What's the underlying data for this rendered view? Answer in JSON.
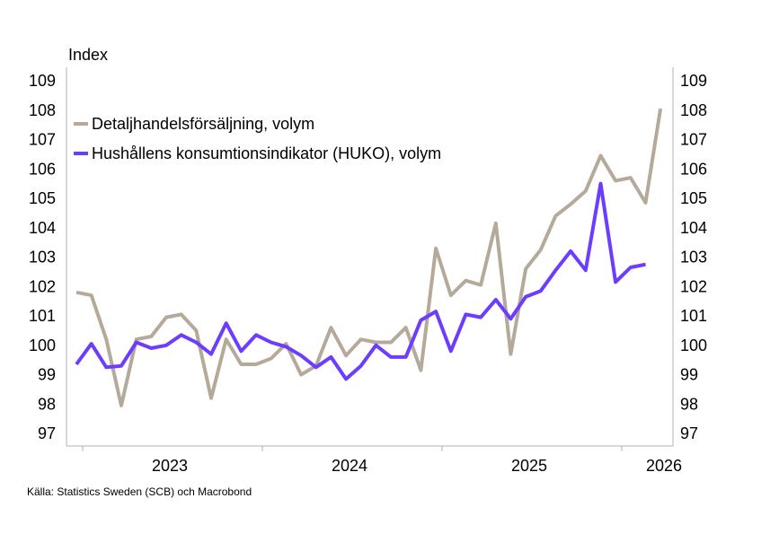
{
  "chart_data": {
    "type": "line",
    "ylabel": "Index",
    "ylim": [
      97,
      109
    ],
    "yticks": [
      97,
      98,
      99,
      100,
      101,
      102,
      103,
      104,
      105,
      106,
      107,
      108,
      109
    ],
    "x_tick_labels": [
      "2023",
      "2024",
      "2025",
      "2026"
    ],
    "x_start": "2022-09",
    "grid": false,
    "legend_position": "top-left",
    "series": [
      {
        "name": "Detaljhandelsförsäljning, volym",
        "color": "#b5aa9a",
        "values": [
          101.8,
          101.7,
          100.2,
          97.95,
          100.2,
          100.3,
          100.95,
          101.05,
          100.5,
          98.2,
          100.2,
          99.35,
          99.35,
          99.55,
          100.05,
          99.0,
          99.3,
          100.6,
          99.65,
          100.2,
          100.1,
          100.1,
          100.6,
          99.15,
          103.3,
          101.7,
          102.2,
          102.05,
          104.15,
          99.7,
          102.6,
          103.25,
          104.4,
          104.8,
          105.25,
          106.45,
          105.6,
          105.7,
          104.85,
          108.05
        ]
      },
      {
        "name": "Hushållens konsumtionsindikator (HUKO), volym",
        "color": "#6c3dff",
        "values": [
          99.35,
          100.05,
          99.25,
          99.3,
          100.1,
          99.9,
          100.0,
          100.35,
          100.1,
          99.7,
          100.75,
          99.8,
          100.35,
          100.1,
          99.95,
          99.65,
          99.25,
          99.6,
          98.85,
          99.3,
          100.0,
          99.6,
          99.6,
          100.85,
          101.15,
          99.8,
          101.05,
          100.95,
          101.55,
          100.9,
          101.65,
          101.85,
          102.55,
          103.2,
          102.55,
          105.5,
          102.15,
          102.65,
          102.75
        ]
      }
    ]
  },
  "source_text": "Källa: Statistics Sweden (SCB)  och Macrobond"
}
